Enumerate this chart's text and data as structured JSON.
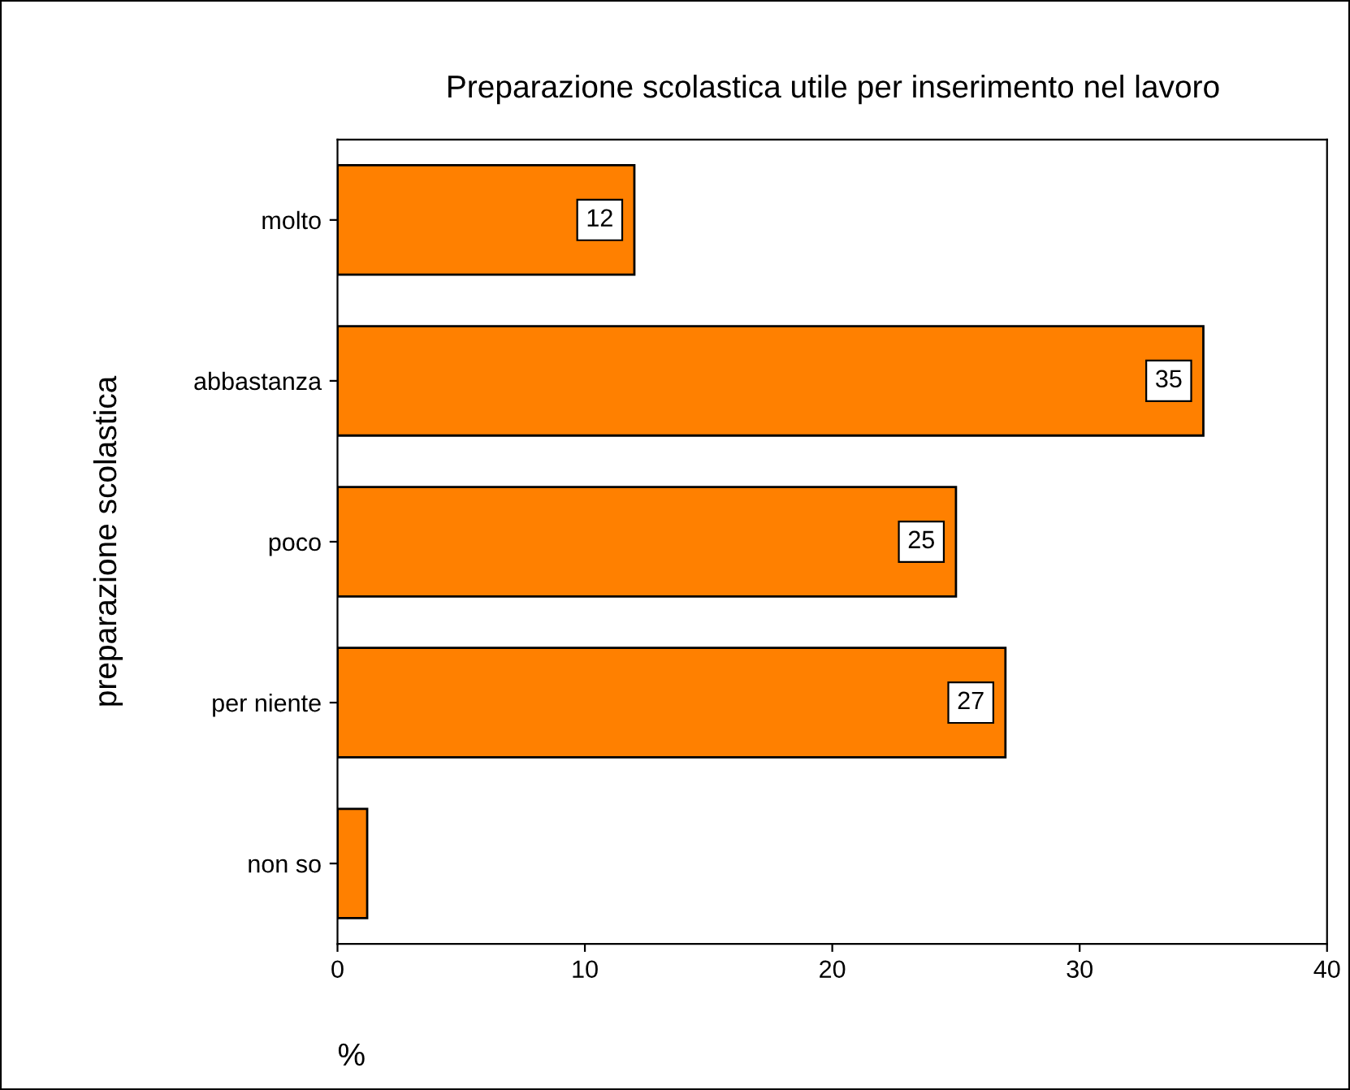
{
  "chart_data": {
    "type": "bar",
    "orientation": "horizontal",
    "title": "Preparazione scolastica utile per inserimento nel lavoro",
    "xlabel": "%",
    "ylabel": "preparazione scolastica",
    "categories": [
      "molto",
      "abbastanza",
      "poco",
      "per niente",
      "non so"
    ],
    "values": [
      12,
      35,
      25,
      27,
      1.2
    ],
    "value_labels": [
      "12",
      "35",
      "25",
      "27",
      null
    ],
    "color": "#ff8000",
    "xlim": [
      0,
      40
    ],
    "xticks": [
      0,
      10,
      20,
      30,
      40
    ]
  }
}
